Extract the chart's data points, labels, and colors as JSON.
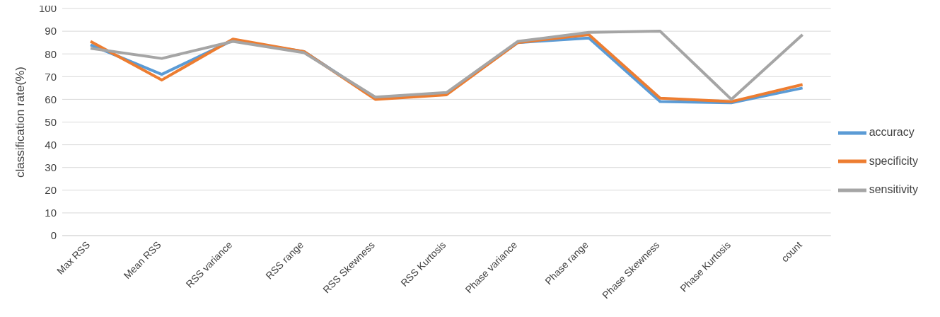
{
  "chart_data": {
    "type": "line",
    "ylabel": "classification rate(%)",
    "categories": [
      "Max RSS",
      "Mean RSS",
      "RSS variance",
      "RSS range",
      "RSS Skewness",
      "RSS Kurtosis",
      "Phase variance",
      "Phase range",
      "Phase Skewness",
      "Phase Kurtosis",
      "count"
    ],
    "series": [
      {
        "name": "accuracy",
        "color": "#5b9bd5",
        "values": [
          84,
          71,
          86,
          81,
          60.5,
          62.5,
          85,
          87,
          59,
          58.5,
          65
        ]
      },
      {
        "name": "specificity",
        "color": "#ed7d31",
        "values": [
          85.5,
          68.5,
          86.5,
          81,
          60,
          62,
          85,
          88.5,
          60.5,
          59,
          66.5
        ]
      },
      {
        "name": "sensitivity",
        "color": "#a5a5a5",
        "values": [
          82.5,
          78,
          85.5,
          80.5,
          61,
          63,
          85.5,
          89.5,
          90,
          60,
          88.5
        ]
      }
    ],
    "ylim": [
      0,
      100
    ],
    "yticks": [
      0,
      10,
      20,
      30,
      40,
      50,
      60,
      70,
      80,
      90,
      100
    ],
    "grid": "y",
    "legend": "right",
    "marker": "none",
    "line_style": "solid"
  }
}
